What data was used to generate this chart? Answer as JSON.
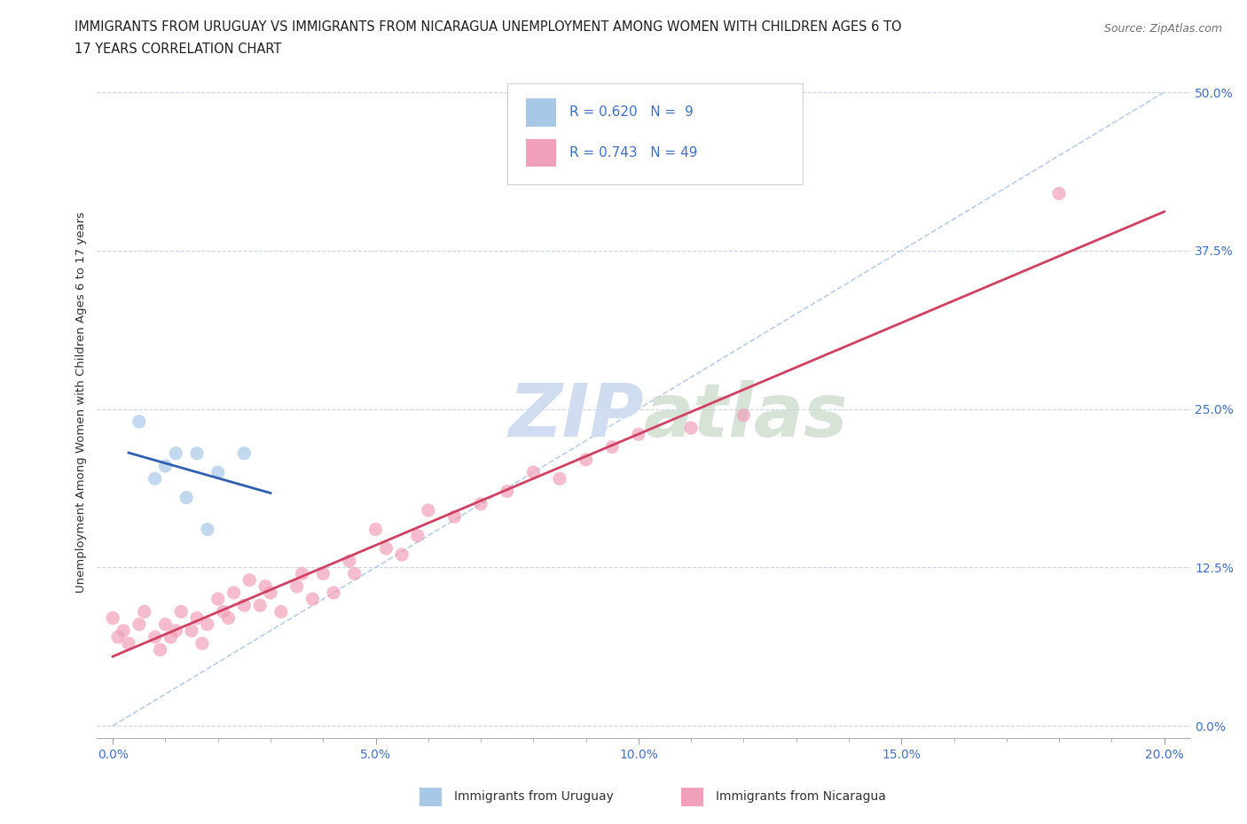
{
  "title_line1": "IMMIGRANTS FROM URUGUAY VS IMMIGRANTS FROM NICARAGUA UNEMPLOYMENT AMONG WOMEN WITH CHILDREN AGES 6 TO",
  "title_line2": "17 YEARS CORRELATION CHART",
  "source": "Source: ZipAtlas.com",
  "ylabel": "Unemployment Among Women with Children Ages 6 to 17 years",
  "xlabel_ticks": [
    "0.0%",
    "",
    "",
    "",
    "",
    "5.0%",
    "",
    "",
    "",
    "",
    "10.0%",
    "",
    "",
    "",
    "",
    "15.0%",
    "",
    "",
    "",
    "",
    "20.0%"
  ],
  "xlabel_vals": [
    0.0,
    0.01,
    0.02,
    0.03,
    0.04,
    0.05,
    0.06,
    0.07,
    0.08,
    0.09,
    0.1,
    0.11,
    0.12,
    0.13,
    0.14,
    0.15,
    0.16,
    0.17,
    0.18,
    0.19,
    0.2
  ],
  "xlabel_major_ticks": [
    0.0,
    0.05,
    0.1,
    0.15,
    0.2
  ],
  "xlabel_major_labels": [
    "0.0%",
    "5.0%",
    "10.0%",
    "15.0%",
    "20.0%"
  ],
  "ylabel_major_ticks": [
    0.0,
    0.125,
    0.25,
    0.375,
    0.5
  ],
  "ylabel_major_labels": [
    "0.0%",
    "12.5%",
    "25.0%",
    "37.5%",
    "50.0%"
  ],
  "xlim": [
    -0.003,
    0.205
  ],
  "ylim": [
    -0.01,
    0.52
  ],
  "uruguay_R": 0.62,
  "uruguay_N": 9,
  "nicaragua_R": 0.743,
  "nicaragua_N": 49,
  "uruguay_color": "#a8c8e8",
  "nicaragua_color": "#f0a0b8",
  "uruguay_line_color": "#3060b0",
  "nicaragua_line_color": "#d04060",
  "diagonal_color": "#b0c8e8",
  "background_color": "#ffffff",
  "grid_color": "#c8d4e8",
  "watermark_color": "#d0ddf0",
  "uruguay_x": [
    0.005,
    0.008,
    0.01,
    0.012,
    0.014,
    0.016,
    0.018,
    0.02,
    0.025
  ],
  "uruguay_y": [
    0.24,
    0.195,
    0.205,
    0.215,
    0.18,
    0.215,
    0.155,
    0.2,
    0.215
  ],
  "nicaragua_x": [
    0.0,
    0.001,
    0.002,
    0.003,
    0.005,
    0.006,
    0.008,
    0.009,
    0.01,
    0.011,
    0.012,
    0.013,
    0.015,
    0.016,
    0.017,
    0.018,
    0.02,
    0.021,
    0.022,
    0.023,
    0.025,
    0.026,
    0.028,
    0.029,
    0.03,
    0.032,
    0.035,
    0.036,
    0.038,
    0.04,
    0.042,
    0.045,
    0.046,
    0.05,
    0.052,
    0.055,
    0.058,
    0.06,
    0.065,
    0.07,
    0.075,
    0.08,
    0.085,
    0.09,
    0.095,
    0.1,
    0.11,
    0.12,
    0.18
  ],
  "nicaragua_y": [
    0.085,
    0.07,
    0.075,
    0.065,
    0.08,
    0.09,
    0.07,
    0.06,
    0.08,
    0.07,
    0.075,
    0.09,
    0.075,
    0.085,
    0.065,
    0.08,
    0.1,
    0.09,
    0.085,
    0.105,
    0.095,
    0.115,
    0.095,
    0.11,
    0.105,
    0.09,
    0.11,
    0.12,
    0.1,
    0.12,
    0.105,
    0.13,
    0.12,
    0.155,
    0.14,
    0.135,
    0.15,
    0.17,
    0.165,
    0.175,
    0.185,
    0.2,
    0.195,
    0.21,
    0.22,
    0.23,
    0.235,
    0.245,
    0.42
  ],
  "title_fontsize": 10.5,
  "source_fontsize": 9,
  "tick_label_color": "#4070c8",
  "ylabel_color": "#303030",
  "axis_label_fontsize": 9.5,
  "tick_fontsize": 10,
  "legend_fontsize": 11
}
